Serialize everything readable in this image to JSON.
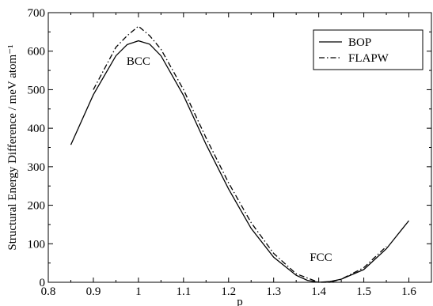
{
  "chart_data": {
    "type": "line",
    "title": "",
    "xlabel": "p",
    "ylabel": "Structural Energy Difference / meV atom⁻¹",
    "xlim": [
      0.8,
      1.65
    ],
    "ylim": [
      0,
      700
    ],
    "xticks": [
      0.8,
      0.9,
      1.0,
      1.1,
      1.2,
      1.3,
      1.4,
      1.5,
      1.6
    ],
    "xtick_labels": [
      "0.8",
      "0.9",
      "1",
      "1.1",
      "1.2",
      "1.3",
      "1.4",
      "1.5",
      "1.6"
    ],
    "yticks": [
      0,
      100,
      200,
      300,
      400,
      500,
      600,
      700
    ],
    "ytick_labels": [
      "0",
      "100",
      "200",
      "300",
      "400",
      "500",
      "600",
      "700"
    ],
    "grid": false,
    "legend_position": "top-right",
    "series": [
      {
        "name": "BOP",
        "style": "solid",
        "color": "#000000",
        "x": [
          0.85,
          0.9,
          0.95,
          0.975,
          1.0,
          1.025,
          1.05,
          1.1,
          1.15,
          1.2,
          1.25,
          1.3,
          1.35,
          1.375,
          1.4,
          1.425,
          1.45,
          1.5,
          1.55,
          1.6
        ],
        "y": [
          357,
          487,
          588,
          617,
          627,
          618,
          588,
          485,
          358,
          242,
          140,
          65,
          18,
          5,
          0,
          2,
          8,
          33,
          87,
          160
        ]
      },
      {
        "name": "FLAPW",
        "style": "dashdot",
        "color": "#000000",
        "x": [
          0.9,
          0.95,
          0.975,
          1.0,
          1.025,
          1.05,
          1.1,
          1.15,
          1.2,
          1.25,
          1.3,
          1.35,
          1.4,
          1.425,
          1.45,
          1.5,
          1.55
        ],
        "y": [
          500,
          610,
          640,
          665,
          640,
          605,
          500,
          375,
          258,
          155,
          75,
          22,
          0,
          0,
          8,
          38,
          93
        ]
      }
    ],
    "annotations": [
      {
        "text": "BCC",
        "x": 1.0,
        "y": 565
      },
      {
        "text": "FCC",
        "x": 1.405,
        "y": 55
      }
    ]
  }
}
